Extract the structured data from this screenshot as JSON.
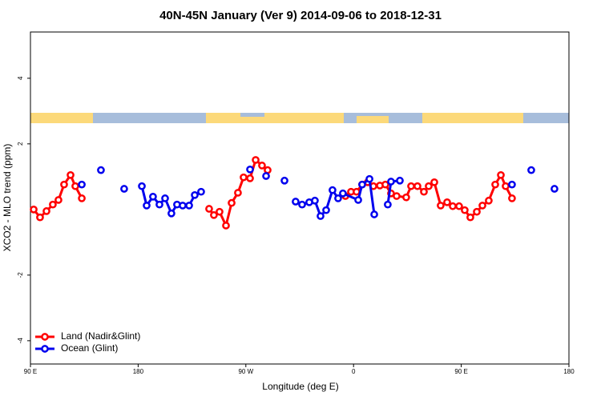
{
  "chart_data": {
    "type": "line",
    "title": "40N-45N January (Ver 9)   2014-09-06 to 2018-12-31",
    "x_label": "Longitude (deg E)",
    "y_label": "XCO2 - MLO trend (ppm)",
    "xlim": [
      90,
      540
    ],
    "xticks": [
      {
        "value": 90,
        "label": "90 E"
      },
      180,
      {
        "value": 270,
        "label": "90 W"
      },
      {
        "value": 360,
        "label": "0"
      },
      {
        "value": 450,
        "label": "90 E"
      },
      {
        "value": 540,
        "label": "180"
      }
    ],
    "ylim": [
      -4.71,
      5.41
    ],
    "yticks": [
      -4,
      -2,
      2,
      4
    ],
    "legend": "bottom-left",
    "series": [
      {
        "name": "Land (Nadir&Glint)",
        "color": "#ff0000",
        "x": [
          92.7,
          98.0,
          103.4,
          108.7,
          113.4,
          118.1,
          123.5,
          127.5,
          132.9,
          null,
          239.3,
          243.3,
          248.0,
          253.4,
          258.1,
          263.4,
          268.1,
          273.5,
          278.2,
          283.5,
          288.2,
          null,
          353.2,
          357.9,
          362.5,
          367.2,
          371.9,
          376.6,
          382.0,
          386.6,
          391.3,
          396.0,
          404.0,
          408.1,
          413.4,
          418.8,
          422.8,
          427.5,
          432.8,
          438.2,
          442.9,
          448.2,
          452.9,
          457.6,
          463.0,
          467.7,
          473.0,
          478.4,
          483.1,
          487.1,
          492.4
        ],
        "values": [
          0.0,
          -0.24,
          -0.05,
          0.15,
          0.29,
          0.76,
          1.05,
          0.71,
          0.34,
          null,
          0.02,
          -0.17,
          -0.07,
          -0.49,
          0.2,
          0.51,
          0.98,
          0.95,
          1.51,
          1.34,
          1.2,
          null,
          0.41,
          0.54,
          0.54,
          0.76,
          0.83,
          0.71,
          0.73,
          0.76,
          0.49,
          0.41,
          0.37,
          0.71,
          0.71,
          0.54,
          0.71,
          0.83,
          0.12,
          0.22,
          0.1,
          0.1,
          -0.02,
          -0.24,
          -0.07,
          0.12,
          0.27,
          0.76,
          1.05,
          0.71,
          0.34
        ]
      },
      {
        "name": "Ocean (Glint)",
        "color": "#0000ee",
        "x": [
          132.9,
          null,
          148.9,
          null,
          168.3,
          null,
          183.1,
          187.1,
          192.4,
          197.8,
          202.5,
          207.8,
          212.5,
          217.2,
          222.6,
          227.3,
          232.6,
          null,
          273.5,
          null,
          286.9,
          null,
          302.3,
          null,
          311.6,
          317.0,
          323.0,
          327.7,
          332.4,
          337.1,
          342.4,
          347.1,
          351.1,
          363.9,
          367.2,
          373.3,
          377.3,
          null,
          388.6,
          391.3,
          398.7,
          null,
          492.4,
          null,
          508.5,
          null,
          527.9
        ],
        "values": [
          0.76,
          null,
          1.2,
          null,
          0.63,
          null,
          0.71,
          0.12,
          0.39,
          0.15,
          0.34,
          -0.12,
          0.15,
          0.12,
          0.12,
          0.44,
          0.54,
          null,
          1.22,
          null,
          1.02,
          null,
          0.88,
          null,
          0.24,
          0.15,
          0.22,
          0.27,
          -0.2,
          -0.02,
          0.59,
          0.34,
          0.49,
          0.29,
          0.76,
          0.93,
          -0.15,
          null,
          0.15,
          0.85,
          0.88,
          null,
          0.76,
          null,
          1.2,
          null,
          0.63
        ]
      }
    ]
  }
}
